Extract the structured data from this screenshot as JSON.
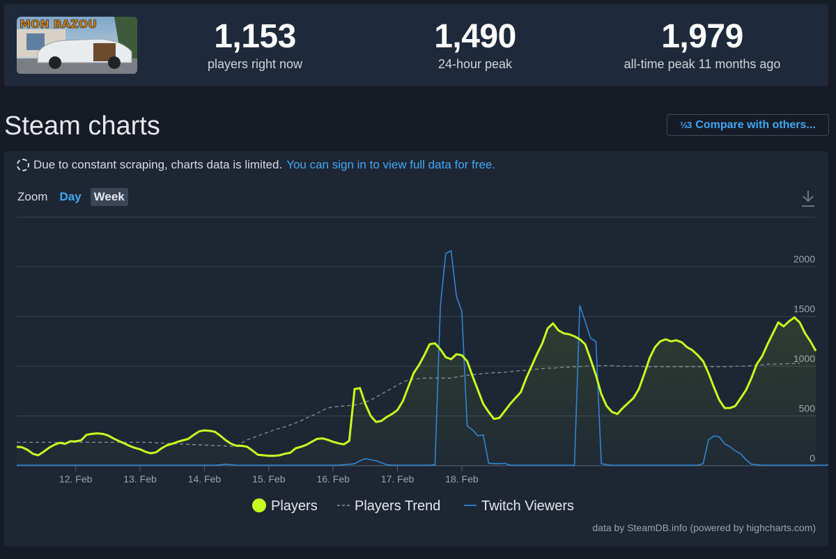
{
  "stats": {
    "players_now": {
      "value": "1,153",
      "label": "players right now"
    },
    "peak_24h": {
      "value": "1,490",
      "label": "24-hour peak"
    },
    "all_time": {
      "value": "1,979",
      "label": "all-time peak 11 months ago"
    },
    "game_logo_text": "MON BAZOU"
  },
  "page_title": "Steam charts",
  "compare_button": {
    "icon": "fraction-icon",
    "icon_text": "½3",
    "label": "Compare with others..."
  },
  "notice": {
    "text": "Due to constant scraping, charts data is limited.",
    "link": "You can sign in to view full data for free."
  },
  "zoom": {
    "label": "Zoom",
    "options": [
      "Day",
      "Week"
    ],
    "selected": "Week"
  },
  "credit": "data by SteamDB.info (powered by highcharts.com)",
  "colors": {
    "players": "#c8ff1e",
    "trend": "#8a9099",
    "twitch": "#2f86d6",
    "link": "#3fa9f5"
  },
  "chart_data": {
    "type": "line",
    "x_start": "11. Feb 02:00",
    "x_step_hours": 2,
    "x_ticks": [
      "12. Feb",
      "13. Feb",
      "14. Feb",
      "15. Feb",
      "16. Feb",
      "17. Feb",
      "18. Feb"
    ],
    "y_ticks": [
      0,
      500,
      1000,
      1500,
      2000
    ],
    "ylim": [
      0,
      2000
    ],
    "legend_position": "bottom-center",
    "grid": true,
    "series": [
      {
        "name": "Players",
        "style": "solid-area",
        "values": [
          190,
          185,
          160,
          120,
          105,
          140,
          180,
          210,
          230,
          220,
          245,
          245,
          255,
          310,
          320,
          325,
          320,
          305,
          275,
          250,
          225,
          200,
          180,
          165,
          140,
          125,
          135,
          175,
          205,
          220,
          240,
          255,
          270,
          310,
          345,
          355,
          350,
          340,
          300,
          255,
          220,
          200,
          200,
          190,
          150,
          110,
          105,
          100,
          100,
          105,
          120,
          130,
          175,
          190,
          210,
          240,
          270,
          275,
          260,
          240,
          225,
          215,
          250,
          770,
          780,
          620,
          500,
          440,
          450,
          490,
          520,
          560,
          650,
          790,
          930,
          1010,
          1110,
          1220,
          1230,
          1170,
          1090,
          1070,
          1120,
          1110,
          1050,
          900,
          760,
          620,
          540,
          470,
          480,
          550,
          620,
          680,
          740,
          880,
          1000,
          1120,
          1230,
          1380,
          1430,
          1360,
          1330,
          1320,
          1300,
          1270,
          1220,
          1070,
          910,
          720,
          600,
          540,
          520,
          580,
          630,
          680,
          770,
          920,
          1080,
          1190,
          1250,
          1270,
          1250,
          1260,
          1240,
          1190,
          1160,
          1110,
          1050,
          930,
          790,
          660,
          580,
          580,
          600,
          680,
          760,
          880,
          1020,
          1100,
          1220,
          1330,
          1440,
          1400,
          1450,
          1490,
          1440,
          1330,
          1250,
          1153
        ]
      },
      {
        "name": "Players Trend",
        "style": "dashed",
        "values": [
          235,
          235,
          235,
          235,
          235,
          235,
          235,
          235,
          235,
          235,
          235,
          235,
          235,
          235,
          235,
          235,
          235,
          235,
          235,
          235,
          235,
          235,
          235,
          235,
          235,
          235,
          230,
          228,
          225,
          222,
          220,
          218,
          215,
          212,
          210,
          208,
          205,
          202,
          200,
          198,
          195,
          200,
          230,
          260,
          280,
          300,
          320,
          340,
          360,
          375,
          390,
          410,
          430,
          450,
          480,
          500,
          525,
          555,
          580,
          590,
          595,
          600,
          605,
          610,
          620,
          640,
          660,
          690,
          720,
          750,
          780,
          810,
          840,
          860,
          870,
          875,
          880,
          880,
          880,
          880,
          880,
          880,
          890,
          900,
          910,
          915,
          920,
          925,
          930,
          935,
          935,
          940,
          945,
          950,
          955,
          960,
          965,
          970,
          975,
          980,
          980,
          985,
          990,
          990,
          995,
          995,
          1000,
          1000,
          1000,
          1005,
          1005,
          1005,
          1000,
          1000,
          1000,
          1000,
          1000,
          995,
          995,
          995,
          995,
          995,
          995,
          995,
          995,
          995,
          995,
          995,
          995,
          995,
          995,
          995,
          995,
          995,
          1000,
          1000,
          1000,
          1005,
          1010,
          1015,
          1020,
          1020,
          1020,
          1025,
          1025,
          1025,
          1030
        ]
      },
      {
        "name": "Twitch Viewers",
        "style": "solid",
        "values": [
          5,
          5,
          5,
          5,
          5,
          5,
          5,
          5,
          5,
          5,
          5,
          5,
          5,
          5,
          5,
          5,
          5,
          5,
          5,
          5,
          5,
          5,
          5,
          5,
          5,
          5,
          5,
          5,
          5,
          5,
          5,
          5,
          5,
          5,
          5,
          5,
          5,
          5,
          10,
          15,
          10,
          5,
          5,
          5,
          5,
          5,
          5,
          5,
          5,
          5,
          5,
          5,
          5,
          5,
          5,
          5,
          5,
          5,
          5,
          5,
          5,
          10,
          15,
          20,
          50,
          70,
          60,
          50,
          30,
          10,
          5,
          5,
          5,
          5,
          5,
          5,
          5,
          5,
          10,
          1600,
          2130,
          2160,
          1700,
          1550,
          400,
          360,
          300,
          310,
          25,
          20,
          20,
          25,
          5,
          5,
          5,
          5,
          5,
          5,
          5,
          5,
          5,
          5,
          5,
          5,
          5,
          1610,
          1450,
          1280,
          1250,
          20,
          10,
          5,
          5,
          5,
          5,
          5,
          5,
          5,
          5,
          5,
          5,
          5,
          5,
          5,
          5,
          5,
          5,
          5,
          20,
          260,
          300,
          290,
          220,
          190,
          150,
          120,
          60,
          15,
          10,
          5,
          5,
          5,
          5,
          5,
          5,
          5,
          5,
          5,
          5,
          5,
          5,
          5,
          20,
          30,
          60,
          80,
          90,
          120,
          250,
          150,
          140,
          5,
          10,
          15,
          15,
          20,
          30
        ]
      }
    ]
  }
}
